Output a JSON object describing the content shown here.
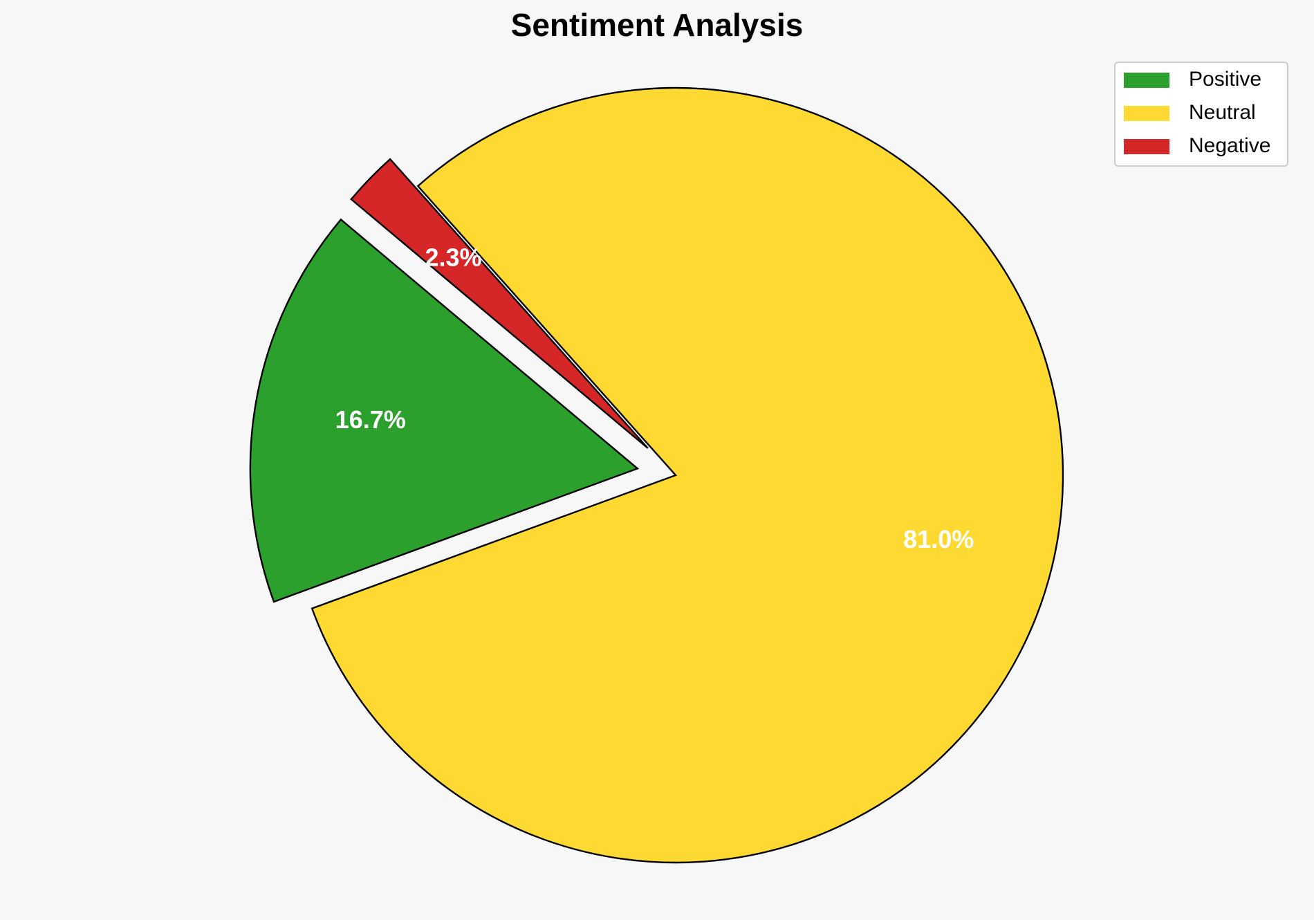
{
  "chart_data": {
    "type": "pie",
    "title": "Sentiment Analysis",
    "categories": [
      "Positive",
      "Neutral",
      "Negative"
    ],
    "values": [
      16.7,
      81.0,
      2.3
    ],
    "value_labels": [
      "16.7%",
      "81.0%",
      "2.3%"
    ],
    "colors": [
      "#2ca02c",
      "#fed931",
      "#d62728"
    ],
    "legend": "upper right"
  }
}
